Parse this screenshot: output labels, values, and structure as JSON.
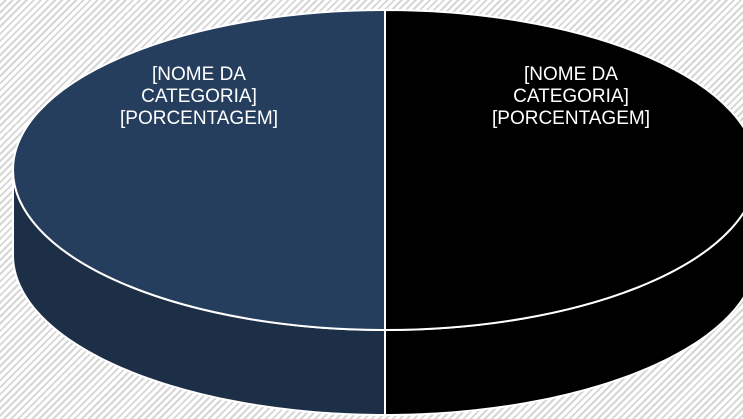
{
  "chart_data": {
    "type": "pie3d",
    "categories": [
      "[NOME DA CATEGORIA]",
      "[NOME DA CATEGORIA]"
    ],
    "values": [
      50,
      50
    ],
    "value_labels": [
      "[PORCENTAGEM]",
      "[PORCENTAGEM]"
    ],
    "colors": [
      "#253e5e",
      "#000000"
    ]
  }
}
